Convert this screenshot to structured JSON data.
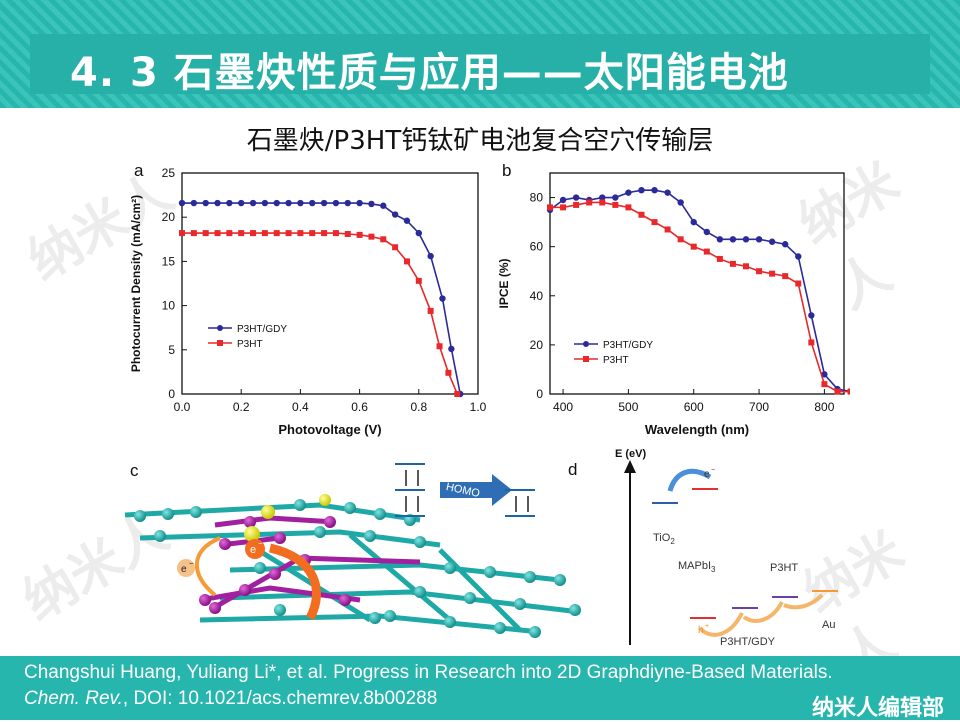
{
  "header": {
    "title": "4. 3  石墨炔性质与应用——太阳能电池"
  },
  "subtitle": "石墨炔/P3HT钙钛矿电池复合空穴传输层",
  "watermark": "纳米人",
  "footer": {
    "line1": "Changshui Huang, Yuliang Li*, et al. Progress in Research into 2D Graphdiyne-Based Materials.",
    "journal": "Chem. Rev.",
    "doi": ", DOI: 10.1021/acs.chemrev.8b00288",
    "brand": "纳米人编辑部"
  },
  "colors": {
    "teal": "#27b6ad",
    "blue": "#2b2a9a",
    "red": "#e8282b"
  },
  "panels": {
    "a": "a",
    "b": "b",
    "c": "c",
    "d": "d",
    "c_homo": "HOMO",
    "c_e1": "e",
    "c_e2": "e",
    "d_ylabel": "E (eV)",
    "d_e": "e",
    "d_tio2": "TiO",
    "d_tio2_sub": "2",
    "d_mapbi": "MAPbI",
    "d_mapbi_sub": "3",
    "d_p3ht": "P3HT",
    "d_hole": "h",
    "d_gdy": "P3HT/GDY",
    "d_au": "Au"
  },
  "chart_data": [
    {
      "type": "line",
      "panel": "a",
      "xlabel": "Photovoltage (V)",
      "ylabel": "Photocurrent Density (mA/cm²)",
      "xlim": [
        0,
        1.0
      ],
      "ylim": [
        0,
        25
      ],
      "xticks": [
        "0.0",
        "0.2",
        "0.4",
        "0.6",
        "0.8",
        "1.0"
      ],
      "yticks": [
        "0",
        "5",
        "10",
        "15",
        "20",
        "25"
      ],
      "legend_position": "lower-left",
      "series": [
        {
          "name": "P3HT/GDY",
          "x": [
            0,
            0.04,
            0.08,
            0.12,
            0.16,
            0.2,
            0.24,
            0.28,
            0.32,
            0.36,
            0.4,
            0.44,
            0.48,
            0.52,
            0.56,
            0.6,
            0.64,
            0.68,
            0.72,
            0.76,
            0.8,
            0.84,
            0.88,
            0.91,
            0.94
          ],
          "y": [
            21.6,
            21.6,
            21.6,
            21.6,
            21.6,
            21.6,
            21.6,
            21.6,
            21.6,
            21.6,
            21.6,
            21.6,
            21.6,
            21.6,
            21.6,
            21.6,
            21.5,
            21.3,
            20.3,
            19.6,
            18.2,
            15.6,
            10.8,
            5.1,
            0
          ]
        },
        {
          "name": "P3HT",
          "x": [
            0,
            0.04,
            0.08,
            0.12,
            0.16,
            0.2,
            0.24,
            0.28,
            0.32,
            0.36,
            0.4,
            0.44,
            0.48,
            0.52,
            0.56,
            0.6,
            0.64,
            0.68,
            0.72,
            0.76,
            0.8,
            0.84,
            0.87,
            0.9,
            0.93
          ],
          "y": [
            18.2,
            18.2,
            18.2,
            18.2,
            18.2,
            18.2,
            18.2,
            18.2,
            18.2,
            18.2,
            18.2,
            18.2,
            18.2,
            18.2,
            18.1,
            18.0,
            17.8,
            17.5,
            16.6,
            15.0,
            12.8,
            9.4,
            5.4,
            2.4,
            0
          ]
        }
      ]
    },
    {
      "type": "line",
      "panel": "b",
      "xlabel": "Wavelength (nm)",
      "ylabel": "IPCE (%)",
      "xlim": [
        380,
        830
      ],
      "ylim": [
        0,
        90
      ],
      "xticks": [
        "400",
        "500",
        "600",
        "700",
        "800"
      ],
      "yticks": [
        "0",
        "20",
        "40",
        "60",
        "80"
      ],
      "legend_position": "lower-left",
      "series": [
        {
          "name": "P3HT/GDY",
          "x": [
            380,
            400,
            420,
            440,
            460,
            480,
            500,
            520,
            540,
            560,
            580,
            600,
            620,
            640,
            660,
            680,
            700,
            720,
            740,
            760,
            780,
            800,
            820,
            840
          ],
          "y": [
            75,
            79,
            80,
            79,
            80,
            80,
            82,
            83,
            83,
            82,
            78,
            70,
            66,
            63,
            63,
            63,
            63,
            62,
            61,
            56,
            32,
            8,
            2,
            1
          ]
        },
        {
          "name": "P3HT",
          "x": [
            380,
            400,
            420,
            440,
            460,
            480,
            500,
            520,
            540,
            560,
            580,
            600,
            620,
            640,
            660,
            680,
            700,
            720,
            740,
            760,
            780,
            800,
            820,
            840
          ],
          "y": [
            76,
            76,
            77,
            78,
            78,
            77,
            76,
            73,
            70,
            67,
            63,
            60,
            58,
            55,
            53,
            52,
            50,
            49,
            48,
            45,
            21,
            4,
            1,
            1
          ]
        }
      ]
    }
  ]
}
